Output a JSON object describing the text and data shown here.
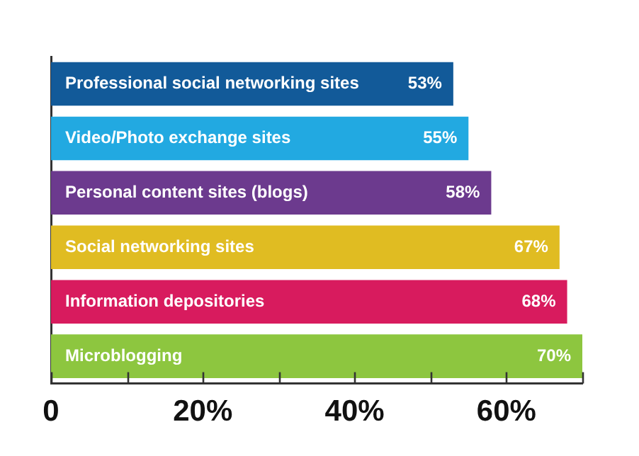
{
  "chart_data": {
    "type": "bar",
    "orientation": "horizontal",
    "categories": [
      "Professional social networking sites",
      "Video/Photo exchange sites",
      "Personal content sites (blogs)",
      "Social networking sites",
      "Information depositories",
      "Microblogging"
    ],
    "values": [
      53,
      55,
      58,
      67,
      68,
      70
    ],
    "colors": [
      "#125a99",
      "#22a9e1",
      "#6c3a8e",
      "#e0bc22",
      "#d81b5e",
      "#8dc63f"
    ],
    "value_labels": [
      "53%",
      "55%",
      "58%",
      "67%",
      "68%",
      "70%"
    ],
    "xlim": [
      0,
      70
    ],
    "xticks": [
      0,
      {
        "value": 10,
        "label": null
      },
      {
        "value": 20,
        "label": "20%"
      },
      {
        "value": 30,
        "label": null
      },
      {
        "value": 40,
        "label": "40%"
      },
      {
        "value": 50,
        "label": null
      },
      {
        "value": 60,
        "label": "60%"
      },
      {
        "value": 70,
        "label": null
      }
    ],
    "grid": false,
    "legend": false
  }
}
